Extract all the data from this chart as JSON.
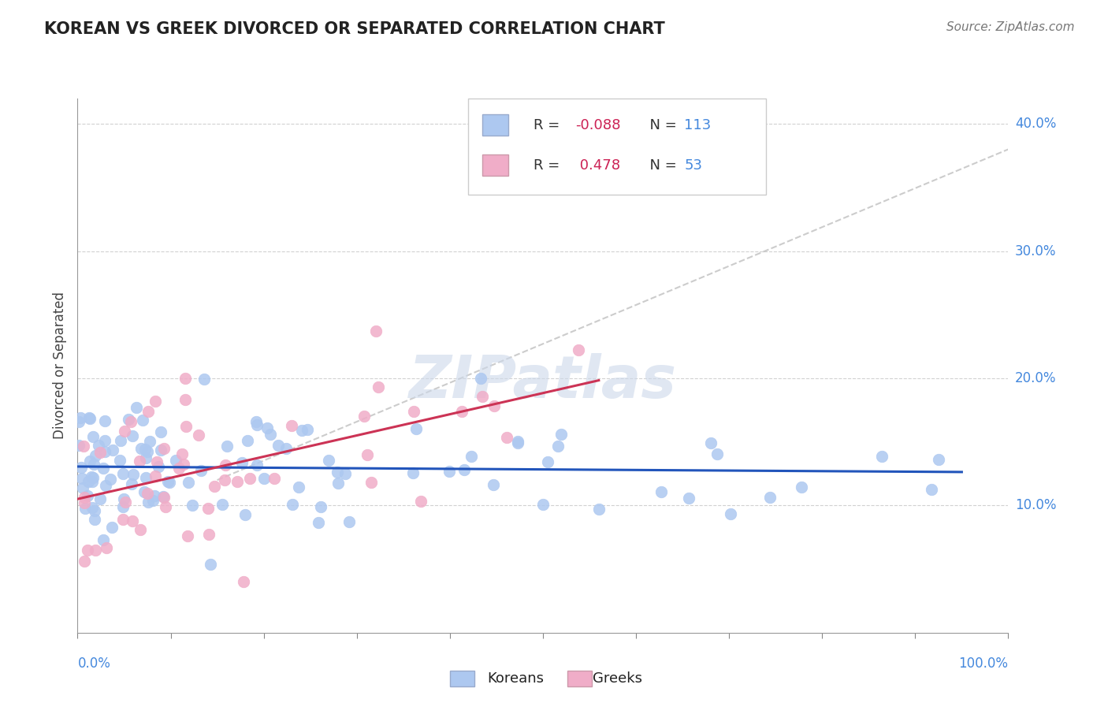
{
  "title": "KOREAN VS GREEK DIVORCED OR SEPARATED CORRELATION CHART",
  "source": "Source: ZipAtlas.com",
  "ylabel": "Divorced or Separated",
  "legend_korean": "Koreans",
  "legend_greek": "Greeks",
  "korean_R": -0.088,
  "korean_N": 113,
  "greek_R": 0.478,
  "greek_N": 53,
  "korean_color": "#adc8f0",
  "greek_color": "#f0adc8",
  "korean_line_color": "#2255bb",
  "greek_line_color": "#cc3355",
  "trend_line_color": "#c0c0c0",
  "background_color": "#ffffff",
  "grid_color": "#cccccc",
  "axis_label_color": "#4488dd",
  "title_color": "#222222",
  "xlim": [
    0.0,
    100.0
  ],
  "ylim": [
    0.0,
    42.0
  ],
  "ytick_vals": [
    10.0,
    20.0,
    30.0,
    40.0
  ],
  "ytick_labels": [
    "10.0%",
    "20.0%",
    "30.0%",
    "40.0%"
  ]
}
